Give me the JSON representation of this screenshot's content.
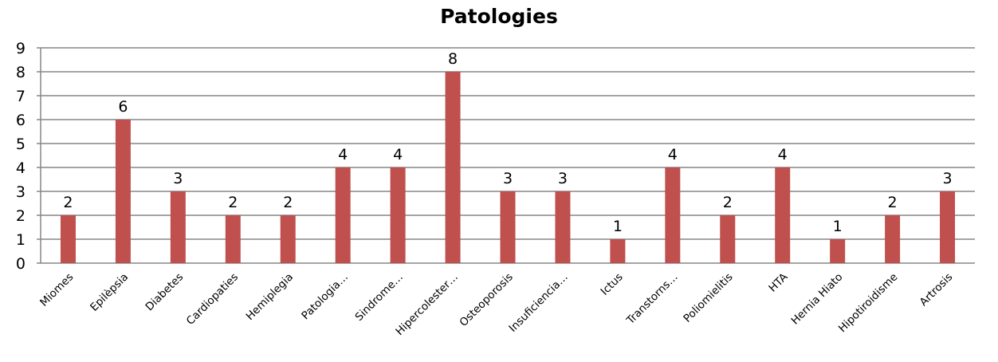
{
  "chart_data": {
    "type": "bar",
    "title": "Patologies",
    "xlabel": "",
    "ylabel": "",
    "categories": [
      "Miomes",
      "Epilèpsia",
      "Diabetes",
      "Cardiopaties",
      "Hemiplegia",
      "Patologia…",
      "Sindrome…",
      "Hipercolester…",
      "Osteoporosis",
      "Insuficiencia…",
      "Ictus",
      "Transtorns…",
      "Poliomielitis",
      "HTA",
      "Hernia Hiato",
      "Hipotiroidisme",
      "Artrosis"
    ],
    "values": [
      2,
      6,
      3,
      2,
      2,
      4,
      4,
      8,
      3,
      3,
      1,
      4,
      2,
      4,
      1,
      2,
      3
    ],
    "ylim": [
      0,
      9
    ],
    "yticks": [
      0,
      1,
      2,
      3,
      4,
      5,
      6,
      7,
      8,
      9
    ],
    "grid": true,
    "legend": "none",
    "data_labels": true,
    "colors": {
      "bar": "#C0504D",
      "grid": "#868686",
      "axis": "#868686"
    }
  }
}
